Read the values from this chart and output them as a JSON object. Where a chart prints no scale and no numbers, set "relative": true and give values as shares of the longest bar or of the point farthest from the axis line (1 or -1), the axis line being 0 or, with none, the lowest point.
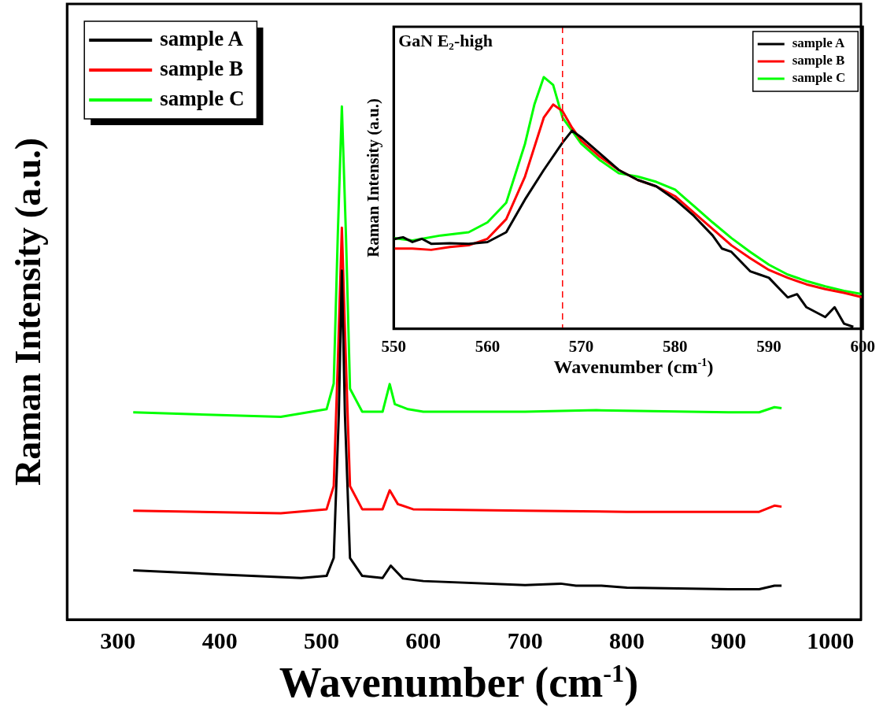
{
  "chart_data": [
    {
      "type": "line",
      "xlabel": "Wavenumber (cm$^{-1}$)",
      "ylabel": "Raman Intensity (a.u.)",
      "relative": true,
      "xlim": [
        250,
        1030
      ],
      "xticks": [
        300,
        400,
        500,
        600,
        700,
        800,
        900,
        1000
      ],
      "legend": "top left",
      "grid": false,
      "line_style": "solid",
      "marker": "none",
      "series": [
        {
          "name": "sample A",
          "color": "#000000",
          "x": [
            315,
            400,
            480,
            505,
            512,
            517,
            520,
            523,
            528,
            540,
            560,
            568,
            580,
            600,
            700,
            735,
            750,
            775,
            800,
            900,
            930,
            945,
            952
          ],
          "values": [
            0.096,
            0.088,
            0.081,
            0.085,
            0.12,
            0.4,
            0.68,
            0.4,
            0.12,
            0.085,
            0.081,
            0.105,
            0.08,
            0.075,
            0.067,
            0.07,
            0.066,
            0.066,
            0.062,
            0.059,
            0.059,
            0.066,
            0.066
          ]
        },
        {
          "name": "sample B",
          "color": "#ff0000",
          "x": [
            315,
            460,
            505,
            512,
            516,
            520,
            524,
            528,
            540,
            560,
            567,
            575,
            590,
            700,
            800,
            900,
            930,
            945,
            952
          ],
          "values": [
            0.212,
            0.207,
            0.215,
            0.26,
            0.5,
            0.764,
            0.5,
            0.26,
            0.215,
            0.215,
            0.252,
            0.225,
            0.215,
            0.212,
            0.21,
            0.21,
            0.21,
            0.222,
            0.22
          ]
        },
        {
          "name": "sample C",
          "color": "#00ff00",
          "x": [
            315,
            460,
            505,
            512,
            516,
            520,
            524,
            528,
            540,
            560,
            567,
            572,
            585,
            600,
            700,
            770,
            900,
            930,
            945,
            952
          ],
          "values": [
            0.404,
            0.395,
            0.41,
            0.46,
            0.75,
            1.0,
            0.75,
            0.45,
            0.405,
            0.405,
            0.459,
            0.42,
            0.41,
            0.405,
            0.405,
            0.408,
            0.404,
            0.404,
            0.414,
            0.412
          ]
        }
      ]
    },
    {
      "type": "line",
      "xlabel": "Wavenumber (cm$^{-1}$)",
      "ylabel": "Raman Intensity (a.u.)",
      "relative": true,
      "xlim": [
        550,
        600
      ],
      "xticks": [
        550,
        560,
        570,
        580,
        590,
        600
      ],
      "legend": "top right",
      "grid": false,
      "line_style": "solid",
      "marker": "none",
      "annotations": [
        "GaN E₂-high"
      ],
      "ref_lines": [
        {
          "axis": "x",
          "value": 568,
          "label": null,
          "color": "#ff0000",
          "line_style": "dashed"
        }
      ],
      "series": [
        {
          "name": "sample A",
          "color": "#000000",
          "x": [
            550,
            551,
            552,
            553,
            554,
            556,
            558,
            560,
            562,
            564,
            566,
            568,
            569,
            570,
            572,
            574,
            576,
            578,
            580,
            582,
            584,
            585,
            586,
            588,
            589,
            590,
            592,
            593,
            594,
            596,
            597,
            598,
            599
          ],
          "values": [
            0.356,
            0.364,
            0.345,
            0.358,
            0.338,
            0.34,
            0.338,
            0.345,
            0.384,
            0.514,
            0.631,
            0.74,
            0.787,
            0.761,
            0.696,
            0.631,
            0.592,
            0.566,
            0.514,
            0.449,
            0.371,
            0.319,
            0.306,
            0.229,
            0.216,
            0.203,
            0.125,
            0.138,
            0.086,
            0.047,
            0.086,
            0.021,
            0.008
          ]
        },
        {
          "name": "sample B",
          "color": "#ff0000",
          "x": [
            550,
            552,
            554,
            556,
            558,
            560,
            562,
            564,
            566,
            567,
            568,
            569,
            570,
            572,
            574,
            576,
            578,
            580,
            582,
            584,
            586,
            588,
            590,
            592,
            594,
            596,
            598,
            600
          ],
          "values": [
            0.319,
            0.319,
            0.314,
            0.325,
            0.332,
            0.358,
            0.436,
            0.605,
            0.839,
            0.891,
            0.865,
            0.8,
            0.748,
            0.683,
            0.631,
            0.592,
            0.566,
            0.527,
            0.462,
            0.397,
            0.332,
            0.281,
            0.234,
            0.203,
            0.177,
            0.158,
            0.143,
            0.125
          ]
        },
        {
          "name": "sample C",
          "color": "#00ff00",
          "x": [
            550,
            552,
            555,
            558,
            560,
            562,
            564,
            565,
            566,
            567,
            568,
            570,
            572,
            574,
            576,
            578,
            580,
            582,
            584,
            586,
            588,
            590,
            592,
            594,
            596,
            598,
            600
          ],
          "values": [
            0.361,
            0.351,
            0.371,
            0.384,
            0.423,
            0.501,
            0.735,
            0.891,
            1.0,
            0.969,
            0.839,
            0.735,
            0.67,
            0.618,
            0.605,
            0.584,
            0.553,
            0.488,
            0.423,
            0.361,
            0.306,
            0.255,
            0.216,
            0.19,
            0.169,
            0.151,
            0.138
          ]
        }
      ]
    }
  ]
}
